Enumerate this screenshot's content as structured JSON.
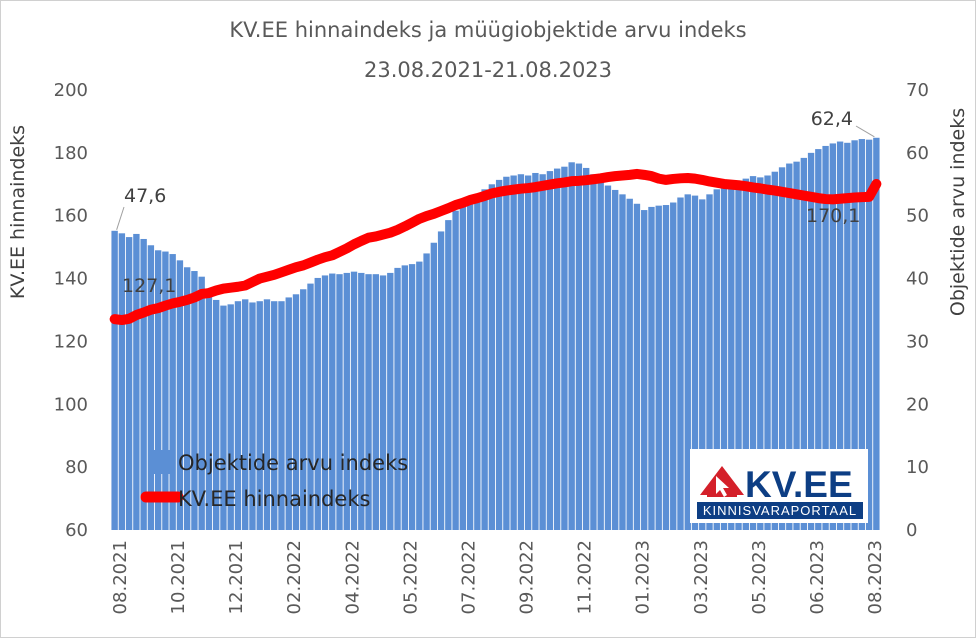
{
  "chart_data": {
    "type": "bar+line",
    "title": "KV.EE hinnaindeks ja müügiobjektide arvu indeks",
    "subtitle": "23.08.2021-21.08.2023",
    "ylabel_left": "KV.EE hinnaindeks",
    "ylabel_right": "Objektide arvu indeks",
    "ylim_left": [
      60,
      200
    ],
    "ylim_right": [
      0,
      70
    ],
    "yticks_left": [
      "60",
      "80",
      "100",
      "120",
      "140",
      "160",
      "180",
      "200"
    ],
    "yticks_right": [
      "0",
      "10",
      "20",
      "30",
      "40",
      "50",
      "60",
      "70"
    ],
    "xtick_labels": [
      "08.2021",
      "10.2021",
      "12.2021",
      "02.2022",
      "04.2022",
      "05.2022",
      "07.2022",
      "09.2022",
      "11.2022",
      "01.2023",
      "03.2023",
      "05.2023",
      "06.2023",
      "08.2023"
    ],
    "legend": [
      "Objektide arvu indeks",
      "KV.EE hinnaindeks"
    ],
    "colors": {
      "bars": "#5b8fd5",
      "line": "#ff0000"
    },
    "series": [
      {
        "name": "Objektide arvu indeks",
        "axis": "right",
        "type": "bar",
        "values": [
          47.6,
          47.2,
          46.6,
          47.1,
          46.3,
          45.3,
          44.5,
          44.3,
          43.9,
          42.9,
          41.8,
          41.2,
          40.3,
          38.1,
          36.6,
          35.7,
          35.9,
          36.4,
          36.7,
          36.2,
          36.4,
          36.7,
          36.4,
          36.4,
          37.0,
          37.5,
          38.3,
          39.2,
          40.1,
          40.5,
          40.8,
          40.7,
          40.9,
          41.1,
          40.9,
          40.7,
          40.7,
          40.5,
          40.9,
          41.7,
          42.1,
          42.3,
          42.7,
          44.0,
          45.7,
          47.5,
          49.3,
          50.8,
          51.8,
          52.7,
          53.3,
          54.2,
          55.0,
          55.7,
          56.2,
          56.4,
          56.6,
          56.4,
          56.8,
          56.6,
          57.1,
          57.5,
          57.8,
          58.5,
          58.3,
          57.6,
          56.6,
          55.5,
          54.8,
          54.1,
          53.4,
          52.7,
          51.9,
          50.9,
          51.4,
          51.6,
          51.7,
          52.1,
          52.9,
          53.4,
          53.2,
          52.6,
          53.4,
          54.2,
          54.7,
          54.9,
          55.2,
          55.9,
          56.3,
          56.1,
          56.4,
          57.0,
          57.7,
          58.3,
          58.6,
          59.2,
          60.0,
          60.6,
          61.1,
          61.5,
          61.8,
          61.6,
          62.0,
          62.2,
          62.1,
          62.4
        ]
      },
      {
        "name": "KV.EE hinnaindeks",
        "axis": "left",
        "type": "line",
        "values": [
          127.1,
          126.8,
          127.2,
          128.4,
          129.2,
          130.1,
          130.6,
          131.4,
          132.1,
          132.6,
          133.2,
          134.0,
          135.1,
          135.4,
          136.2,
          136.8,
          137.1,
          137.4,
          137.8,
          138.9,
          140.0,
          140.6,
          141.2,
          142.0,
          142.8,
          143.6,
          144.2,
          145.1,
          146.0,
          146.8,
          147.4,
          148.5,
          149.6,
          150.9,
          152.0,
          153.0,
          153.4,
          154.0,
          154.6,
          155.5,
          156.6,
          157.8,
          159.0,
          159.9,
          160.6,
          161.5,
          162.4,
          163.4,
          164.1,
          165.0,
          165.6,
          166.3,
          167.1,
          167.6,
          168.0,
          168.3,
          168.6,
          168.8,
          169.1,
          169.5,
          169.9,
          170.3,
          170.6,
          171.0,
          171.1,
          171.3,
          171.6,
          171.9,
          172.3,
          172.6,
          172.8,
          173.0,
          173.3,
          173.0,
          172.6,
          171.8,
          171.4,
          171.7,
          171.9,
          172.0,
          171.8,
          171.4,
          170.9,
          170.5,
          170.1,
          169.9,
          169.7,
          169.4,
          169.0,
          168.7,
          168.3,
          168.0,
          167.6,
          167.2,
          166.8,
          166.4,
          166.0,
          165.6,
          165.3,
          165.2,
          165.4,
          165.6,
          165.8,
          165.9,
          166.0,
          170.1
        ]
      }
    ],
    "data_labels": {
      "bar_first": "47,6",
      "bar_last": "62,4",
      "line_first": "127,1",
      "line_last": "170,1"
    }
  },
  "logo": {
    "name": "KV.EE",
    "tagline": "KINNISVARAPORTAAL"
  }
}
